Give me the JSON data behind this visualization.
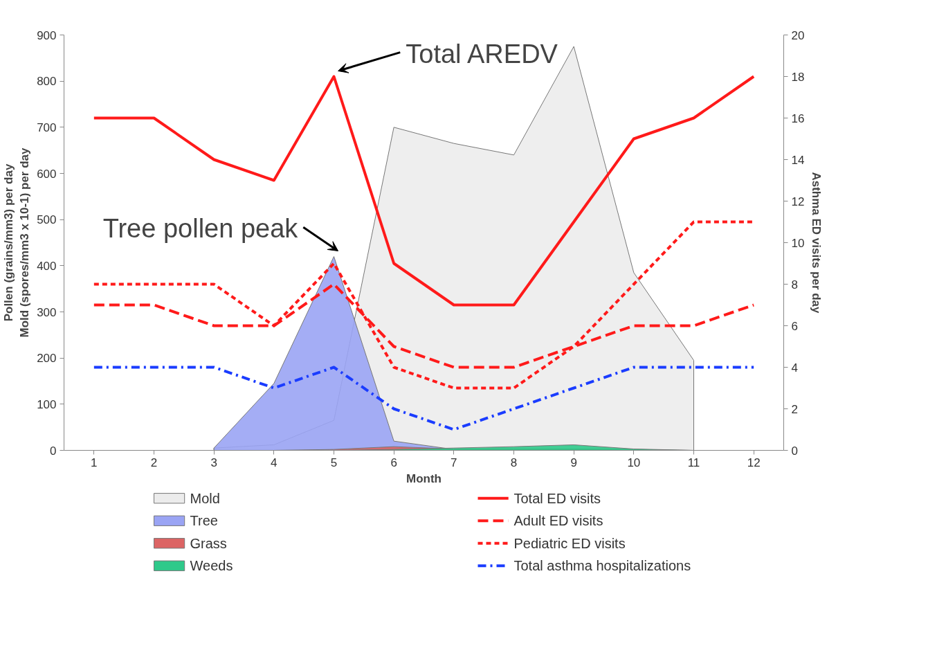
{
  "chart_data": {
    "type": "line",
    "xlabel": "Month",
    "ylabel": "Pollen (grains/mm3) per day\nMold (spores/mm3 x 10-1) per day",
    "y2label": "Asthma ED visits per day",
    "x": [
      1,
      2,
      3,
      4,
      5,
      6,
      7,
      8,
      9,
      10,
      11,
      12
    ],
    "xlim": [
      0.5,
      12.5
    ],
    "xticks": [
      1,
      2,
      3,
      4,
      5,
      6,
      7,
      8,
      9,
      10,
      11,
      12
    ],
    "ylim": [
      0,
      900
    ],
    "yticks": [
      0,
      100,
      200,
      300,
      400,
      500,
      600,
      700,
      800,
      900
    ],
    "y2lim": [
      0,
      20
    ],
    "y2ticks": [
      0,
      2,
      4,
      6,
      8,
      10,
      12,
      14,
      16,
      18,
      20
    ],
    "grid": false,
    "legend": "bottom",
    "series": [
      {
        "name": "Mold",
        "type": "area",
        "color": "#ececec",
        "values": [
          null,
          null,
          5,
          12,
          65,
          700,
          665,
          640,
          875,
          385,
          195,
          null
        ]
      },
      {
        "name": "Tree",
        "type": "area",
        "color": "#9aa4f4",
        "values": [
          null,
          null,
          5,
          145,
          420,
          20,
          2,
          0,
          0,
          0,
          0,
          null
        ]
      },
      {
        "name": "Grass",
        "type": "area",
        "color": "#dc6464",
        "values": [
          null,
          null,
          0,
          0,
          2,
          8,
          3,
          3,
          3,
          2,
          0,
          null
        ]
      },
      {
        "name": "Weeds",
        "type": "area",
        "color": "#2ec98a",
        "values": [
          null,
          null,
          0,
          0,
          0,
          2,
          5,
          8,
          12,
          3,
          0,
          null
        ]
      },
      {
        "name": "Total ED visits",
        "axis": "y2",
        "color": "#ff1a1a",
        "line_style": "solid",
        "values": [
          16,
          16,
          14,
          13,
          18,
          9,
          7,
          7,
          11,
          15,
          16,
          18
        ]
      },
      {
        "name": "Adult ED visits",
        "axis": "y2",
        "color": "#ff1a1a",
        "line_style": "dashed",
        "values": [
          7,
          7,
          6,
          6,
          8,
          5,
          4,
          4,
          5,
          6,
          6,
          7
        ]
      },
      {
        "name": "Pediatric ED visits",
        "axis": "y2",
        "color": "#ff1a1a",
        "line_style": "dotted",
        "values": [
          8,
          8,
          8,
          6,
          9,
          4,
          3,
          3,
          5,
          8,
          11,
          11
        ]
      },
      {
        "name": "Total asthma hospitalizations",
        "axis": "y2",
        "color": "#1a3cff",
        "line_style": "dashdot",
        "values": [
          4,
          4,
          4,
          3,
          4,
          2,
          1,
          2,
          3,
          4,
          4,
          4
        ]
      }
    ],
    "annotations": [
      {
        "text": "Total AREDV",
        "x": 5,
        "y": 810
      },
      {
        "text": "Tree pollen peak",
        "x": 5,
        "y": 420
      }
    ]
  }
}
